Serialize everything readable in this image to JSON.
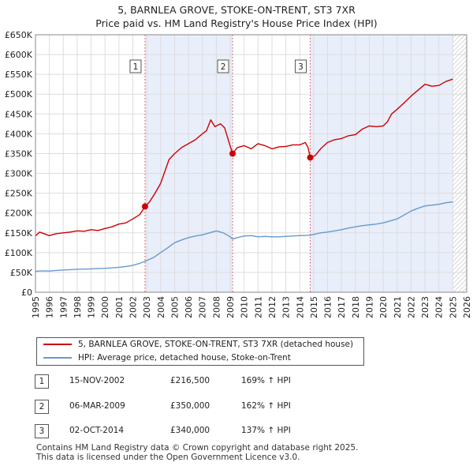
{
  "chart_data": {
    "type": "line",
    "title": "5, BARNLEA GROVE, STOKE-ON-TRENT, ST3 7XR",
    "subtitle": "Price paid vs. HM Land Registry's House Price Index (HPI)",
    "xlabel": "",
    "ylabel": "",
    "xlim": [
      1995,
      2026
    ],
    "ylim": [
      0,
      650000
    ],
    "y_ticks": [
      0,
      50000,
      100000,
      150000,
      200000,
      250000,
      300000,
      350000,
      400000,
      450000,
      500000,
      550000,
      600000,
      650000
    ],
    "y_tick_labels": [
      "£0",
      "£50K",
      "£100K",
      "£150K",
      "£200K",
      "£250K",
      "£300K",
      "£350K",
      "£400K",
      "£450K",
      "£500K",
      "£550K",
      "£600K",
      "£650K"
    ],
    "x_ticks": [
      1995,
      1996,
      1997,
      1998,
      1999,
      2000,
      2001,
      2002,
      2003,
      2004,
      2005,
      2006,
      2007,
      2008,
      2009,
      2010,
      2011,
      2012,
      2013,
      2014,
      2015,
      2016,
      2017,
      2018,
      2019,
      2020,
      2021,
      2022,
      2023,
      2024,
      2025,
      2026
    ],
    "grid": true,
    "shaded_periods": [
      [
        2002.875,
        2009.17
      ],
      [
        2014.75,
        2025.0
      ]
    ],
    "hatched_from": 2025.0,
    "series": [
      {
        "name": "5, BARNLEA GROVE, STOKE-ON-TRENT, ST3 7XR (detached house)",
        "color": "#cc0000",
        "points": [
          [
            1995.0,
            142000
          ],
          [
            1995.3,
            152000
          ],
          [
            1995.6,
            148000
          ],
          [
            1996.0,
            143000
          ],
          [
            1996.5,
            148000
          ],
          [
            1997.0,
            150000
          ],
          [
            1997.5,
            152000
          ],
          [
            1998.0,
            155000
          ],
          [
            1998.5,
            154000
          ],
          [
            1999.0,
            158000
          ],
          [
            1999.5,
            156000
          ],
          [
            2000.0,
            161000
          ],
          [
            2000.5,
            165000
          ],
          [
            2001.0,
            172000
          ],
          [
            2001.5,
            175000
          ],
          [
            2002.0,
            185000
          ],
          [
            2002.5,
            196000
          ],
          [
            2002.875,
            216500
          ],
          [
            2003.2,
            228000
          ],
          [
            2003.6,
            250000
          ],
          [
            2004.0,
            275000
          ],
          [
            2004.3,
            305000
          ],
          [
            2004.6,
            335000
          ],
          [
            2005.0,
            350000
          ],
          [
            2005.5,
            365000
          ],
          [
            2006.0,
            375000
          ],
          [
            2006.5,
            385000
          ],
          [
            2007.0,
            400000
          ],
          [
            2007.3,
            408000
          ],
          [
            2007.6,
            435000
          ],
          [
            2007.9,
            418000
          ],
          [
            2008.3,
            425000
          ],
          [
            2008.6,
            415000
          ],
          [
            2008.9,
            380000
          ],
          [
            2009.17,
            350000
          ],
          [
            2009.5,
            365000
          ],
          [
            2010.0,
            370000
          ],
          [
            2010.5,
            362000
          ],
          [
            2011.0,
            375000
          ],
          [
            2011.5,
            370000
          ],
          [
            2012.0,
            362000
          ],
          [
            2012.5,
            367000
          ],
          [
            2013.0,
            368000
          ],
          [
            2013.5,
            372000
          ],
          [
            2014.0,
            372000
          ],
          [
            2014.4,
            378000
          ],
          [
            2014.6,
            365000
          ],
          [
            2014.75,
            340000
          ],
          [
            2015.1,
            345000
          ],
          [
            2015.5,
            362000
          ],
          [
            2016.0,
            378000
          ],
          [
            2016.5,
            385000
          ],
          [
            2017.0,
            388000
          ],
          [
            2017.5,
            395000
          ],
          [
            2018.0,
            398000
          ],
          [
            2018.5,
            412000
          ],
          [
            2019.0,
            420000
          ],
          [
            2019.5,
            418000
          ],
          [
            2020.0,
            420000
          ],
          [
            2020.3,
            430000
          ],
          [
            2020.6,
            450000
          ],
          [
            2021.0,
            462000
          ],
          [
            2021.5,
            478000
          ],
          [
            2022.0,
            495000
          ],
          [
            2022.5,
            510000
          ],
          [
            2023.0,
            525000
          ],
          [
            2023.5,
            520000
          ],
          [
            2024.0,
            522000
          ],
          [
            2024.5,
            532000
          ],
          [
            2025.0,
            538000
          ]
        ]
      },
      {
        "name": "HPI: Average price, detached house, Stoke-on-Trent",
        "color": "#6699cc",
        "points": [
          [
            1995.0,
            53000
          ],
          [
            1995.5,
            54000
          ],
          [
            1996.0,
            53500
          ],
          [
            1996.5,
            55000
          ],
          [
            1997.0,
            56000
          ],
          [
            1997.5,
            57000
          ],
          [
            1998.0,
            58000
          ],
          [
            1998.5,
            58500
          ],
          [
            1999.0,
            59000
          ],
          [
            1999.5,
            60000
          ],
          [
            2000.0,
            60500
          ],
          [
            2000.5,
            61500
          ],
          [
            2001.0,
            63000
          ],
          [
            2001.5,
            65000
          ],
          [
            2002.0,
            68000
          ],
          [
            2002.5,
            73000
          ],
          [
            2002.875,
            78000
          ],
          [
            2003.5,
            88000
          ],
          [
            2004.0,
            100000
          ],
          [
            2004.5,
            112000
          ],
          [
            2005.0,
            125000
          ],
          [
            2005.5,
            132000
          ],
          [
            2006.0,
            138000
          ],
          [
            2006.5,
            142000
          ],
          [
            2007.0,
            145000
          ],
          [
            2007.5,
            150000
          ],
          [
            2008.0,
            155000
          ],
          [
            2008.5,
            150000
          ],
          [
            2009.0,
            140000
          ],
          [
            2009.17,
            134000
          ],
          [
            2009.5,
            138000
          ],
          [
            2010.0,
            142000
          ],
          [
            2010.5,
            143000
          ],
          [
            2011.0,
            140000
          ],
          [
            2011.5,
            141000
          ],
          [
            2012.0,
            140000
          ],
          [
            2012.5,
            140000
          ],
          [
            2013.0,
            141000
          ],
          [
            2013.5,
            142000
          ],
          [
            2014.0,
            143000
          ],
          [
            2014.75,
            144000
          ],
          [
            2015.5,
            150000
          ],
          [
            2016.0,
            152000
          ],
          [
            2016.5,
            155000
          ],
          [
            2017.0,
            158000
          ],
          [
            2017.5,
            162000
          ],
          [
            2018.0,
            165000
          ],
          [
            2018.5,
            168000
          ],
          [
            2019.0,
            170000
          ],
          [
            2019.5,
            172000
          ],
          [
            2020.0,
            175000
          ],
          [
            2020.5,
            180000
          ],
          [
            2021.0,
            185000
          ],
          [
            2021.5,
            195000
          ],
          [
            2022.0,
            205000
          ],
          [
            2022.5,
            212000
          ],
          [
            2023.0,
            218000
          ],
          [
            2023.5,
            220000
          ],
          [
            2024.0,
            222000
          ],
          [
            2024.5,
            226000
          ],
          [
            2025.0,
            228000
          ]
        ]
      }
    ],
    "sales": [
      {
        "num": "1",
        "x": 2002.875,
        "y": 216500
      },
      {
        "num": "2",
        "x": 2009.17,
        "y": 350000
      },
      {
        "num": "3",
        "x": 2014.75,
        "y": 340000
      }
    ]
  },
  "legend": {
    "property_label": "5, BARNLEA GROVE, STOKE-ON-TRENT, ST3 7XR (detached house)",
    "hpi_label": "HPI: Average price, detached house, Stoke-on-Trent"
  },
  "sales_table": [
    {
      "num": "1",
      "date": "15-NOV-2002",
      "price": "£216,500",
      "hpi": "169% ↑ HPI"
    },
    {
      "num": "2",
      "date": "06-MAR-2009",
      "price": "£350,000",
      "hpi": "162% ↑ HPI"
    },
    {
      "num": "3",
      "date": "02-OCT-2014",
      "price": "£340,000",
      "hpi": "137% ↑ HPI"
    }
  ],
  "footer": {
    "line1": "Contains HM Land Registry data © Crown copyright and database right 2025.",
    "line2": "This data is licensed under the Open Government Licence v3.0."
  }
}
